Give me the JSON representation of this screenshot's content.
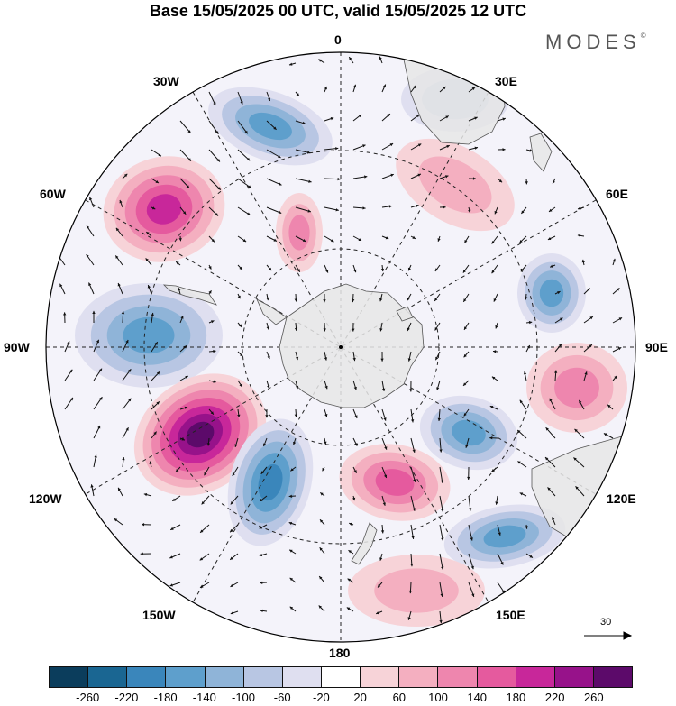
{
  "title": "Base 15/05/2025 00 UTC, valid 15/05/2025 12 UTC",
  "brand": "MODES",
  "brand_mark": "©",
  "longitude_labels": {
    "lon_0": "0",
    "lon_30e": "30E",
    "lon_60e": "60E",
    "lon_90e": "90E",
    "lon_120e": "120E",
    "lon_150e": "150E",
    "lon_180": "180",
    "lon_150w": "150W",
    "lon_120w": "120W",
    "lon_90w": "90W",
    "lon_60w": "60W",
    "lon_30w": "30W"
  },
  "vector_scale": {
    "label": "30"
  },
  "colorbar": {
    "ticks": [
      "-260",
      "-220",
      "-180",
      "-140",
      "-100",
      "-60",
      "-20",
      "20",
      "60",
      "100",
      "140",
      "180",
      "220",
      "260"
    ],
    "colors": [
      "#0b3d5c",
      "#1a6692",
      "#3a86bb",
      "#5e9fcc",
      "#8fb4d8",
      "#b8c6e3",
      "#dfdff0",
      "#ffffff",
      "#f7d3d8",
      "#f4afc0",
      "#ee86ae",
      "#e55a9e",
      "#c8279a",
      "#97128a",
      "#5c0a6a"
    ]
  },
  "anomaly_centers": [
    {
      "sign": "negative",
      "level": 4
    },
    {
      "sign": "positive",
      "level": 5
    },
    {
      "sign": "negative",
      "level": 4
    },
    {
      "sign": "positive",
      "level": 7
    },
    {
      "sign": "negative",
      "level": 5
    },
    {
      "sign": "positive",
      "level": 3
    },
    {
      "sign": "negative",
      "level": 4
    },
    {
      "sign": "positive",
      "level": 4
    },
    {
      "sign": "negative",
      "level": 4
    },
    {
      "sign": "positive",
      "level": 3
    },
    {
      "sign": "negative",
      "level": 4
    },
    {
      "sign": "positive",
      "level": 2
    },
    {
      "sign": "positive",
      "level": 2
    },
    {
      "sign": "negative",
      "level": 2
    }
  ]
}
